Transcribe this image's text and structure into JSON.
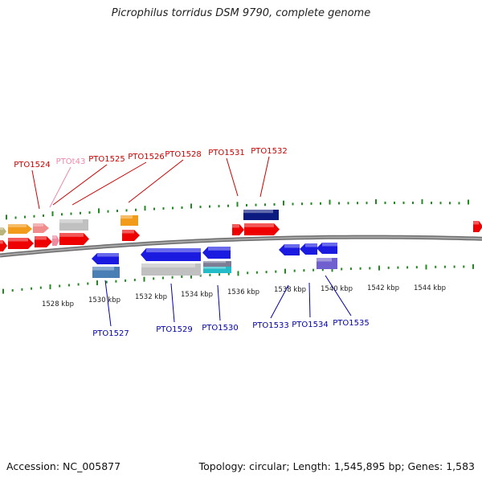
{
  "title": "Picrophilus torridus DSM 9790, complete genome",
  "footer": {
    "accession": "Accession: NC_005877",
    "summary": "Topology: circular; Length: 1,545,895 bp; Genes: 1,583"
  },
  "colors": {
    "plus_label": "#cc0000",
    "pseudo_label": "#ee88aa",
    "minus_label": "#0000aa",
    "backbone": "#888888",
    "tick": "#228822"
  },
  "tick_labels": [
    "1528 kbp",
    "1530 kbp",
    "1532 kbp",
    "1534 kbp",
    "1536 kbp",
    "1538 kbp",
    "1540 kbp",
    "1542 kbp",
    "1544 kbp"
  ],
  "gene_labels_top": [
    "PTO1524",
    "PTOt43",
    "PTO1525",
    "PTO1526",
    "PTO1528",
    "PTO1531",
    "PTO1532"
  ],
  "gene_labels_bottom": [
    "PTO1527",
    "PTO1529",
    "PTO1530",
    "PTO1533",
    "PTO1534",
    "PTO1535"
  ]
}
